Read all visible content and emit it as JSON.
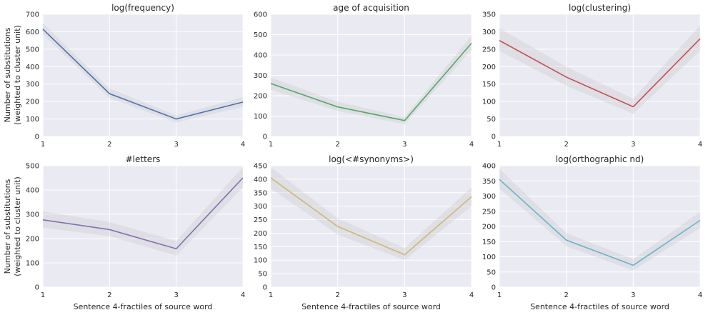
{
  "figure": {
    "ylabel_line1": "Number of substitutions",
    "ylabel_line2": "(weighted to cluster unit)",
    "xlabel": "Sentence 4-fractiles of source word",
    "band_color": "#AEAEAE"
  },
  "chart_data": [
    {
      "type": "line",
      "title": "log(frequency)",
      "x": [
        1,
        2,
        3,
        4
      ],
      "series": [
        {
          "values": [
            615,
            245,
            100,
            197
          ],
          "lower": [
            585,
            220,
            80,
            170
          ],
          "upper": [
            650,
            275,
            120,
            225
          ],
          "color": "#4C72B0"
        }
      ],
      "xlim": [
        1,
        4
      ],
      "ylim": [
        0,
        700
      ],
      "yticks": [
        0,
        100,
        200,
        300,
        400,
        500,
        600,
        700
      ],
      "xticks": [
        1,
        2,
        3,
        4
      ],
      "xlabel": "",
      "ylabel": "Number of substitutions (weighted to cluster unit)",
      "grid": true
    },
    {
      "type": "line",
      "title": "age of acquisition",
      "x": [
        1,
        2,
        3,
        4
      ],
      "series": [
        {
          "values": [
            260,
            145,
            78,
            458
          ],
          "lower": [
            230,
            125,
            60,
            425
          ],
          "upper": [
            290,
            170,
            95,
            495
          ],
          "color": "#55A868"
        }
      ],
      "xlim": [
        1,
        4
      ],
      "ylim": [
        0,
        600
      ],
      "yticks": [
        0,
        100,
        200,
        300,
        400,
        500,
        600
      ],
      "xticks": [
        1,
        2,
        3,
        4
      ],
      "xlabel": "",
      "ylabel": "",
      "grid": true
    },
    {
      "type": "line",
      "title": "log(clustering)",
      "x": [
        1,
        2,
        3,
        4
      ],
      "series": [
        {
          "values": [
            275,
            170,
            85,
            280
          ],
          "lower": [
            245,
            145,
            65,
            245
          ],
          "upper": [
            310,
            200,
            108,
            318
          ],
          "color": "#C44E52"
        }
      ],
      "xlim": [
        1,
        4
      ],
      "ylim": [
        0,
        350
      ],
      "yticks": [
        0,
        50,
        100,
        150,
        200,
        250,
        300,
        350
      ],
      "xticks": [
        1,
        2,
        3,
        4
      ],
      "xlabel": "",
      "ylabel": "",
      "grid": true
    },
    {
      "type": "line",
      "title": "#letters",
      "x": [
        1,
        2,
        3,
        4
      ],
      "series": [
        {
          "values": [
            277,
            237,
            158,
            450
          ],
          "lower": [
            245,
            210,
            130,
            410
          ],
          "upper": [
            312,
            268,
            190,
            495
          ],
          "color": "#8172B2"
        }
      ],
      "xlim": [
        1,
        4
      ],
      "ylim": [
        0,
        500
      ],
      "yticks": [
        0,
        100,
        200,
        300,
        400,
        500
      ],
      "xticks": [
        1,
        2,
        3,
        4
      ],
      "xlabel": "Sentence 4-fractiles of source word",
      "ylabel": "Number of substitutions (weighted to cluster unit)",
      "grid": true
    },
    {
      "type": "line",
      "title": "log(<#synonyms>)",
      "x": [
        1,
        2,
        3,
        4
      ],
      "series": [
        {
          "values": [
            405,
            225,
            120,
            335
          ],
          "lower": [
            365,
            195,
            100,
            300
          ],
          "upper": [
            445,
            255,
            145,
            370
          ],
          "color": "#CCB974"
        }
      ],
      "xlim": [
        1,
        4
      ],
      "ylim": [
        0,
        450
      ],
      "yticks": [
        0,
        50,
        100,
        150,
        200,
        250,
        300,
        350,
        400,
        450
      ],
      "xticks": [
        1,
        2,
        3,
        4
      ],
      "xlabel": "Sentence 4-fractiles of source word",
      "ylabel": "",
      "grid": true
    },
    {
      "type": "line",
      "title": "log(orthographic nd)",
      "x": [
        1,
        2,
        3,
        4
      ],
      "series": [
        {
          "values": [
            355,
            155,
            72,
            220
          ],
          "lower": [
            325,
            135,
            55,
            195
          ],
          "upper": [
            390,
            178,
            92,
            248
          ],
          "color": "#64B5CD"
        }
      ],
      "xlim": [
        1,
        4
      ],
      "ylim": [
        0,
        400
      ],
      "yticks": [
        0,
        50,
        100,
        150,
        200,
        250,
        300,
        350,
        400
      ],
      "xticks": [
        1,
        2,
        3,
        4
      ],
      "xlabel": "Sentence 4-fractiles of source word",
      "ylabel": "",
      "grid": true
    }
  ]
}
